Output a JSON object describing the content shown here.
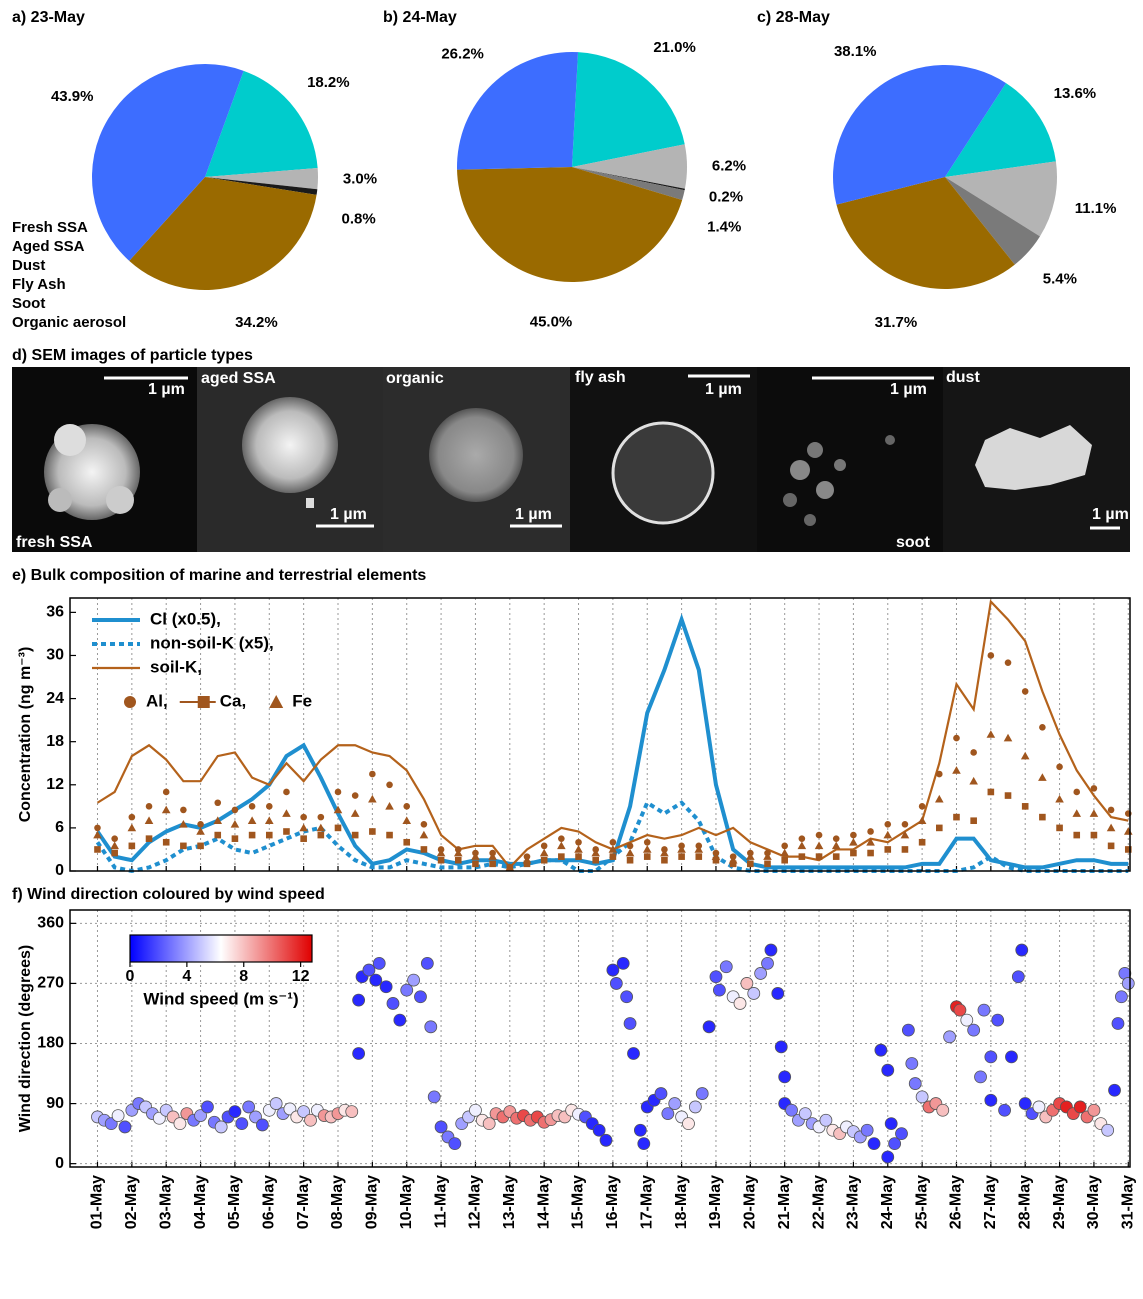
{
  "sem": {
    "title": "d) SEM images of particle types",
    "panels": [
      {
        "label": "fresh SSA",
        "scale": "1 µm"
      },
      {
        "label": "aged SSA",
        "scale": "1 µm"
      },
      {
        "label": "organic",
        "scale": "1 µm"
      },
      {
        "label": "fly ash",
        "scale": "1 µm"
      },
      {
        "label": "soot",
        "scale": "1 µm"
      },
      {
        "label": "dust",
        "scale": "1 µm"
      }
    ]
  },
  "chart_data": [
    {
      "type": "pie",
      "title": "a) 23-May",
      "categories": [
        "Fresh SSA",
        "Aged SSA",
        "Dust",
        "Fly Ash",
        "Soot",
        "Organic aerosol"
      ],
      "colors": [
        "#3d6dff",
        "#00cccc",
        "#9a6a00",
        "#7a7a7a",
        "#1a1a1a",
        "#b4b4b4"
      ],
      "legend": true,
      "startangle": 20,
      "values": [
        43.9,
        18.2,
        34.2,
        null,
        0.8,
        3.0
      ],
      "value_labels": [
        "43.9%",
        "18.2%",
        "34.2%",
        null,
        "0.8%",
        "3.0%"
      ]
    },
    {
      "type": "pie",
      "title": "b) 24-May",
      "startangle": 3,
      "values": [
        26.2,
        21.0,
        45.0,
        1.4,
        0.2,
        6.2
      ],
      "value_labels": [
        "26.2%",
        "21.0%",
        "45.0%",
        "1.4%",
        "0.2%",
        "6.2%"
      ]
    },
    {
      "type": "pie",
      "title": "c) 28-May",
      "startangle": 33,
      "values": [
        38.1,
        13.6,
        31.7,
        5.4,
        null,
        11.1
      ],
      "value_labels": [
        "38.1%",
        "13.6%",
        "31.7%",
        "5.4%",
        null,
        "11.1%"
      ]
    },
    {
      "type": "line",
      "title": "e) Bulk composition of marine and terrestrial elements",
      "ylabel": "Concentration (ng m⁻³)",
      "xlim": [
        0.2,
        31.05
      ],
      "ylim": [
        0,
        38
      ],
      "yticks": [
        0,
        6,
        12,
        18,
        24,
        30,
        36
      ],
      "xticks": [
        1,
        2,
        3,
        4,
        5,
        6,
        7,
        8,
        9,
        10,
        11,
        12,
        13,
        14,
        15,
        16,
        17,
        18,
        19,
        20,
        21,
        22,
        23,
        24,
        25,
        26,
        27,
        28,
        29,
        30,
        31
      ],
      "grid": "x",
      "x": [
        1,
        1.5,
        2,
        2.5,
        3,
        3.5,
        4,
        4.5,
        5,
        5.5,
        6,
        6.5,
        7,
        7.5,
        8,
        8.5,
        9,
        9.5,
        10,
        10.5,
        11,
        11.5,
        12,
        12.5,
        13,
        13.5,
        14,
        14.5,
        15,
        15.5,
        16,
        16.5,
        17,
        17.5,
        18,
        18.5,
        19,
        19.5,
        20,
        20.5,
        21,
        21.5,
        22,
        22.5,
        23,
        23.5,
        24,
        24.5,
        25,
        25.5,
        26,
        26.5,
        27,
        27.5,
        28,
        28.5,
        29,
        29.5,
        30,
        30.5,
        31
      ],
      "series": [
        {
          "name": "Cl (x0.5),",
          "color": "#1f8fcf",
          "style": "solid",
          "values": [
            5.5,
            2,
            1.5,
            4,
            5.5,
            6.5,
            6,
            7,
            8.5,
            10,
            12,
            16,
            17.5,
            13,
            8,
            3.5,
            1,
            1.5,
            3,
            2.5,
            1.5,
            1,
            1.5,
            1.5,
            1,
            1,
            1.5,
            1.5,
            1.5,
            1,
            1.5,
            9,
            22,
            28,
            35,
            28,
            12,
            3,
            1,
            0.5,
            0.5,
            0.5,
            0.5,
            0.5,
            0.5,
            0.5,
            0.5,
            0.5,
            1,
            1,
            4.5,
            4.5,
            1.5,
            1,
            0.5,
            0.5,
            1,
            1.5,
            1.5,
            1,
            1
          ]
        },
        {
          "name": "non-soil-K (x5),",
          "color": "#1f8fcf",
          "style": "dotted",
          "values": [
            4,
            0.5,
            0,
            0.5,
            1.5,
            3,
            3.5,
            4.5,
            3,
            2.5,
            3.5,
            4.5,
            5.5,
            6,
            3.5,
            1.5,
            0.5,
            0.5,
            1.5,
            1,
            0.5,
            0.5,
            0.5,
            1,
            0.5,
            1,
            1.5,
            1.5,
            0,
            0,
            2,
            4,
            9.5,
            8,
            9.5,
            7,
            2,
            0.5,
            0,
            0,
            0,
            0,
            0,
            0,
            0,
            0,
            0,
            0,
            0,
            0,
            0,
            0.5,
            2,
            0.5,
            0,
            0,
            0,
            0,
            0,
            0,
            0
          ]
        },
        {
          "name": "soil-K,",
          "color": "#b4621b",
          "style": "line",
          "values": [
            9.5,
            11,
            16,
            17.5,
            15.5,
            12.5,
            12.5,
            16,
            16.5,
            13,
            12,
            15,
            12.5,
            15.5,
            17.5,
            17.5,
            16.5,
            16,
            14,
            10,
            5,
            3,
            3.5,
            3.5,
            0.5,
            3,
            4.5,
            6,
            5.5,
            4,
            3,
            4,
            5,
            4.5,
            5,
            6,
            5,
            6,
            4,
            3,
            2,
            2,
            1.5,
            3,
            3,
            4.5,
            4,
            5.5,
            7,
            15,
            26,
            22.5,
            37.5,
            35,
            32,
            25,
            19,
            14,
            10.5,
            7.5,
            7
          ]
        },
        {
          "name": "Al,",
          "color": "#a0561e",
          "style": "circle",
          "values": [
            6,
            4.5,
            7.5,
            9,
            11,
            8.5,
            6.5,
            9.5,
            8.5,
            9,
            9,
            11,
            7.5,
            7.5,
            11,
            10.5,
            13.5,
            12,
            9,
            6.5,
            3,
            3,
            2.5,
            2.5,
            0.5,
            2,
            3.5,
            4.5,
            4,
            3,
            4,
            3.5,
            4,
            3,
            3.5,
            3.5,
            2.5,
            2,
            2.5,
            2.5,
            3.5,
            4.5,
            5,
            4.5,
            5,
            5.5,
            6.5,
            6.5,
            9,
            13.5,
            18.5,
            16.5,
            30,
            29,
            25,
            20,
            14.5,
            11,
            11.5,
            8.5,
            8
          ]
        },
        {
          "name": "Ca,",
          "color": "#a0561e",
          "style": "square",
          "values": [
            3,
            2.5,
            3.5,
            4.5,
            4,
            3.5,
            3.5,
            5,
            4.5,
            5,
            5,
            5.5,
            4.5,
            5,
            6,
            5,
            5.5,
            5,
            4,
            3,
            1.5,
            1.5,
            1,
            1,
            0.5,
            1,
            1.5,
            2,
            2,
            1.5,
            2,
            1.5,
            2,
            1.5,
            2,
            2,
            1.5,
            1,
            1,
            1,
            1.5,
            2,
            2,
            2,
            2.5,
            2.5,
            3,
            3,
            4,
            6,
            7.5,
            7,
            11,
            10.5,
            9,
            7.5,
            6,
            5,
            5,
            3.5,
            3
          ]
        },
        {
          "name": "Fe",
          "color": "#a0561e",
          "style": "triangle",
          "values": [
            5,
            3.5,
            6,
            7,
            8.5,
            6.5,
            5.5,
            7,
            6.5,
            7,
            7,
            8,
            6,
            6,
            8.5,
            8,
            10,
            9,
            7,
            5,
            2.5,
            2.5,
            2,
            2,
            0.5,
            1.5,
            2.5,
            3.5,
            3,
            2.5,
            3,
            2.5,
            3,
            2.5,
            3,
            3,
            2,
            1.5,
            2,
            2,
            2.5,
            3.5,
            3.5,
            3.5,
            4,
            4,
            5,
            5,
            7,
            10,
            14,
            12.5,
            19,
            18.5,
            16,
            13,
            10,
            8,
            8,
            6,
            5.5
          ]
        }
      ]
    },
    {
      "type": "scatter",
      "title": "f) Wind direction coloured by wind speed",
      "ylabel": "Wind direction (degrees)",
      "xlim": [
        0.2,
        31.05
      ],
      "ylim": [
        -5,
        380
      ],
      "yticks": [
        0,
        90,
        180,
        270,
        360
      ],
      "grid": "both",
      "xticks": [
        {
          "value": 1,
          "label": "01-May"
        },
        {
          "value": 2,
          "label": "02-May"
        },
        {
          "value": 3,
          "label": "03-May"
        },
        {
          "value": 4,
          "label": "04-May"
        },
        {
          "value": 5,
          "label": "05-May"
        },
        {
          "value": 6,
          "label": "06-May"
        },
        {
          "value": 7,
          "label": "07-May"
        },
        {
          "value": 8,
          "label": "08-May"
        },
        {
          "value": 9,
          "label": "09-May"
        },
        {
          "value": 10,
          "label": "10-May"
        },
        {
          "value": 11,
          "label": "11-May"
        },
        {
          "value": 12,
          "label": "12-May"
        },
        {
          "value": 13,
          "label": "13-May"
        },
        {
          "value": 14,
          "label": "14-May"
        },
        {
          "value": 15,
          "label": "15-May"
        },
        {
          "value": 16,
          "label": "16-May"
        },
        {
          "value": 17,
          "label": "17-May"
        },
        {
          "value": 18,
          "label": "18-May"
        },
        {
          "value": 19,
          "label": "19-May"
        },
        {
          "value": 20,
          "label": "20-May"
        },
        {
          "value": 21,
          "label": "21-May"
        },
        {
          "value": 22,
          "label": "22-May"
        },
        {
          "value": 23,
          "label": "23-May"
        },
        {
          "value": 24,
          "label": "24-May"
        },
        {
          "value": 25,
          "label": "25-May"
        },
        {
          "value": 26,
          "label": "26-May"
        },
        {
          "value": 27,
          "label": "27-May"
        },
        {
          "value": 28,
          "label": "28-May"
        },
        {
          "value": 29,
          "label": "29-May"
        },
        {
          "value": 30,
          "label": "30-May"
        },
        {
          "value": 31,
          "label": "31-May"
        }
      ],
      "colorbar": {
        "label": "Wind speed (m s⁻¹)",
        "clim": [
          0,
          12.8
        ],
        "ticks": [
          0,
          4,
          8,
          12
        ],
        "colors": [
          "#0000ff",
          "#ffffff",
          "#e00000"
        ]
      },
      "x": [
        1.0,
        1.2,
        1.4,
        1.6,
        1.8,
        2.0,
        2.2,
        2.4,
        2.6,
        2.8,
        3.0,
        3.2,
        3.4,
        3.6,
        3.8,
        4.0,
        4.2,
        4.4,
        4.6,
        4.8,
        5.0,
        5.2,
        5.4,
        5.6,
        5.8,
        6.0,
        6.2,
        6.4,
        6.6,
        6.8,
        7.0,
        7.2,
        7.4,
        7.6,
        7.8,
        8.0,
        8.2,
        8.4,
        8.6,
        8.6,
        8.7,
        8.9,
        9.1,
        9.2,
        9.4,
        9.6,
        9.8,
        10.0,
        10.2,
        10.4,
        10.6,
        10.7,
        10.8,
        11.0,
        11.2,
        11.4,
        11.6,
        11.8,
        12.0,
        12.2,
        12.4,
        12.6,
        12.8,
        13.0,
        13.2,
        13.4,
        13.6,
        13.8,
        14.0,
        14.2,
        14.4,
        14.6,
        14.8,
        15.0,
        15.2,
        15.4,
        15.6,
        15.8,
        16.0,
        16.1,
        16.3,
        16.4,
        16.5,
        16.6,
        16.8,
        16.9,
        17.0,
        17.2,
        17.4,
        17.6,
        17.8,
        18.0,
        18.2,
        18.4,
        18.6,
        18.8,
        19.0,
        19.1,
        19.3,
        19.5,
        19.7,
        19.9,
        20.1,
        20.3,
        20.5,
        20.6,
        20.8,
        20.9,
        21.0,
        21.0,
        21.2,
        21.4,
        21.6,
        21.8,
        22.0,
        22.2,
        22.4,
        22.6,
        22.8,
        23.0,
        23.2,
        23.4,
        23.6,
        23.8,
        24.0,
        24.1,
        24.0,
        24.2,
        24.4,
        24.6,
        24.7,
        24.8,
        25.0,
        25.2,
        25.4,
        25.6,
        25.8,
        26.0,
        26.1,
        26.3,
        26.5,
        26.7,
        26.8,
        27.0,
        27.2,
        27.0,
        27.4,
        27.6,
        27.8,
        27.9,
        28.0,
        28.2,
        28.4,
        28.6,
        28.8,
        29.0,
        29.2,
        29.4,
        29.6,
        29.8,
        30.0,
        30.2,
        30.4,
        30.6,
        30.7,
        30.8,
        30.9,
        31.0
      ],
      "values": [
        70,
        65,
        60,
        72,
        55,
        80,
        90,
        85,
        75,
        68,
        80,
        70,
        60,
        75,
        65,
        72,
        85,
        62,
        55,
        70,
        78,
        60,
        85,
        70,
        58,
        80,
        90,
        75,
        82,
        70,
        78,
        65,
        80,
        72,
        70,
        75,
        80,
        78,
        165,
        245,
        280,
        290,
        275,
        300,
        265,
        240,
        215,
        260,
        275,
        250,
        300,
        205,
        100,
        55,
        40,
        30,
        60,
        70,
        80,
        65,
        60,
        75,
        70,
        78,
        68,
        72,
        65,
        70,
        62,
        66,
        72,
        70,
        80,
        74,
        70,
        60,
        50,
        35,
        290,
        270,
        300,
        250,
        210,
        165,
        50,
        30,
        85,
        95,
        105,
        75,
        90,
        70,
        60,
        85,
        105,
        205,
        280,
        260,
        295,
        250,
        240,
        270,
        255,
        285,
        300,
        320,
        255,
        175,
        130,
        90,
        80,
        65,
        75,
        60,
        55,
        65,
        50,
        45,
        55,
        48,
        40,
        50,
        30,
        170,
        140,
        60,
        10,
        30,
        45,
        200,
        150,
        120,
        100,
        85,
        90,
        80,
        190,
        235,
        230,
        215,
        200,
        130,
        230,
        160,
        215,
        95,
        80,
        160,
        280,
        320,
        90,
        75,
        85,
        70,
        80,
        90,
        85,
        75,
        85,
        70,
        80,
        60,
        50,
        110,
        210,
        250,
        285,
        270
      ],
      "speed": [
        5,
        4,
        3,
        6,
        2,
        4,
        3,
        5,
        4,
        6,
        5,
        8,
        7,
        9,
        3,
        4,
        2,
        3,
        5,
        2,
        1,
        2,
        3,
        4,
        2,
        6,
        5,
        4,
        6,
        7,
        5,
        8,
        6,
        9,
        8,
        9,
        7,
        8,
        1,
        1,
        1,
        2,
        1,
        2,
        1,
        2,
        1,
        3,
        4,
        2,
        2,
        3,
        3,
        2,
        3,
        2,
        4,
        5,
        6,
        7,
        8,
        9,
        10,
        9,
        10,
        11,
        10,
        11,
        10,
        9,
        8,
        8,
        7,
        6,
        2,
        1,
        1,
        1,
        1,
        2,
        1,
        2,
        2,
        1,
        1,
        1,
        1,
        1,
        2,
        3,
        4,
        6,
        7,
        5,
        3,
        1,
        2,
        2,
        3,
        6,
        7,
        8,
        5,
        4,
        3,
        1,
        1,
        1,
        1,
        1,
        3,
        4,
        5,
        4,
        6,
        5,
        7,
        8,
        6,
        5,
        4,
        3,
        1,
        1,
        1,
        1,
        1,
        2,
        2,
        2,
        3,
        3,
        5,
        10,
        9,
        8,
        4,
        12,
        11,
        6,
        3,
        3,
        3,
        2,
        2,
        1,
        2,
        1,
        2,
        1,
        1,
        2,
        6,
        8,
        10,
        11,
        12,
        11,
        12,
        10,
        9,
        7,
        5,
        1,
        2,
        3,
        3,
        4
      ]
    }
  ]
}
